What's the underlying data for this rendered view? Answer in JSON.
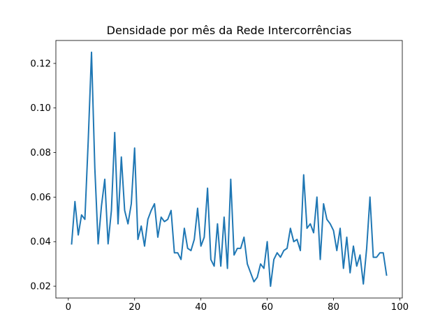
{
  "chart_data": {
    "type": "line",
    "title": "Densidade por mês da Rede Intercorrências",
    "xlabel": "",
    "ylabel": "",
    "xlim": [
      -3.75,
      100.75
    ],
    "ylim": [
      0.0147,
      0.1303
    ],
    "xticks": [
      0,
      20,
      40,
      60,
      80,
      100
    ],
    "yticks": [
      0.02,
      0.04,
      0.06,
      0.08,
      0.1,
      0.12
    ],
    "xtick_labels": [
      "0",
      "20",
      "40",
      "60",
      "80",
      "100"
    ],
    "ytick_labels": [
      "0.02",
      "0.04",
      "0.06",
      "0.08",
      "0.10",
      "0.12"
    ],
    "grid": false,
    "series": [
      {
        "color": "#1f77b4",
        "x": [
          1,
          2,
          3,
          4,
          5,
          6,
          7,
          8,
          9,
          10,
          11,
          12,
          13,
          14,
          15,
          16,
          17,
          18,
          19,
          20,
          21,
          22,
          23,
          24,
          25,
          26,
          27,
          28,
          29,
          30,
          31,
          32,
          33,
          34,
          35,
          36,
          37,
          38,
          39,
          40,
          41,
          42,
          43,
          44,
          45,
          46,
          47,
          48,
          49,
          50,
          51,
          52,
          53,
          54,
          55,
          56,
          57,
          58,
          59,
          60,
          61,
          62,
          63,
          64,
          65,
          66,
          67,
          68,
          69,
          70,
          71,
          72,
          73,
          74,
          75,
          76,
          77,
          78,
          79,
          80,
          81,
          82,
          83,
          84,
          85,
          86,
          87,
          88,
          89,
          90,
          91,
          92,
          93,
          94,
          95,
          96
        ],
        "y": [
          0.039,
          0.058,
          0.043,
          0.052,
          0.05,
          0.085,
          0.125,
          0.073,
          0.039,
          0.056,
          0.068,
          0.039,
          0.054,
          0.089,
          0.048,
          0.078,
          0.054,
          0.048,
          0.057,
          0.082,
          0.041,
          0.047,
          0.038,
          0.05,
          0.054,
          0.057,
          0.042,
          0.051,
          0.049,
          0.05,
          0.054,
          0.035,
          0.035,
          0.032,
          0.046,
          0.037,
          0.036,
          0.041,
          0.055,
          0.038,
          0.042,
          0.064,
          0.032,
          0.029,
          0.048,
          0.029,
          0.051,
          0.028,
          0.068,
          0.034,
          0.037,
          0.037,
          0.042,
          0.03,
          0.026,
          0.022,
          0.024,
          0.03,
          0.028,
          0.04,
          0.02,
          0.032,
          0.035,
          0.033,
          0.036,
          0.037,
          0.046,
          0.04,
          0.041,
          0.036,
          0.07,
          0.046,
          0.048,
          0.044,
          0.06,
          0.032,
          0.057,
          0.05,
          0.048,
          0.045,
          0.036,
          0.046,
          0.028,
          0.042,
          0.026,
          0.038,
          0.029,
          0.034,
          0.021,
          0.037,
          0.06,
          0.033,
          0.033,
          0.035,
          0.035,
          0.025
        ]
      }
    ]
  }
}
